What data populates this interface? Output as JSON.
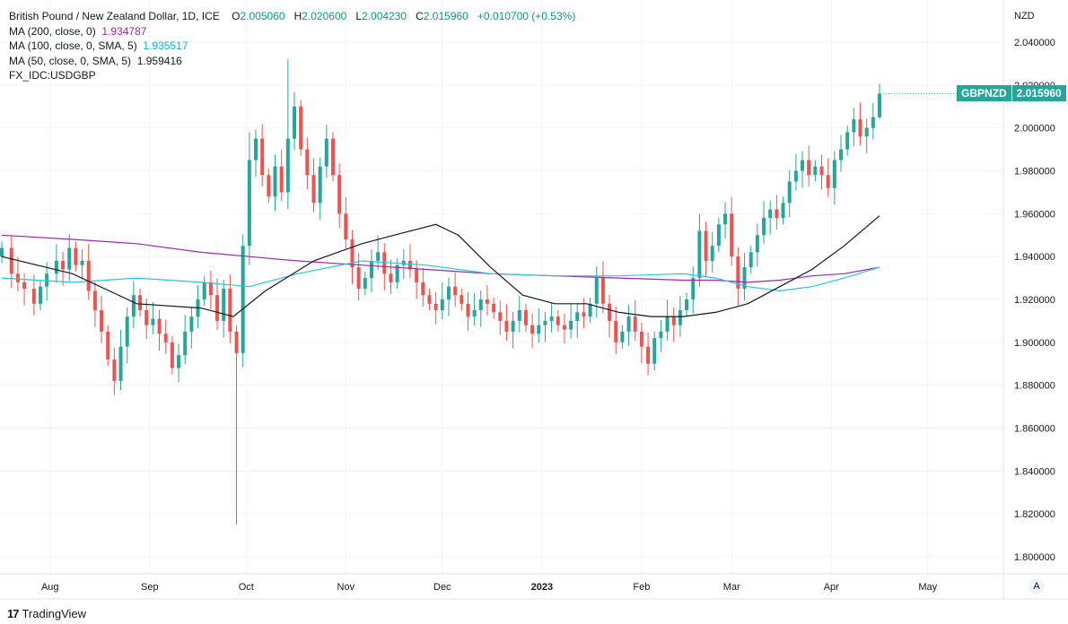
{
  "legend": {
    "title": "British Pound / New Zealand Dollar, 1D, ICE",
    "o_label": "O",
    "o": "2.005060",
    "h_label": "H",
    "h": "2.020600",
    "l_label": "L",
    "l": "2.004230",
    "c_label": "C",
    "c": "2.015960",
    "change": "+0.010700 (+0.53%)",
    "ma200_label": "MA (200, close, 0)",
    "ma200_value": "1.934787",
    "ma100_label": "MA (100, close, 0, SMA, 5)",
    "ma100_value": "1.935517",
    "ma50_label": "MA (50, close, 0, SMA, 5)",
    "ma50_value": "1.959416",
    "extra": "FX_IDC:USDGBP"
  },
  "price_tag": {
    "symbol": "GBPNZD",
    "value": "2.015960"
  },
  "axis_currency": "NZD",
  "auto_button": "A",
  "brand": "TradingView",
  "colors": {
    "up": "#26a69a",
    "down": "#ef5350",
    "ma200": "#9c27b0",
    "ma100": "#26c6da",
    "ma50": "#131722"
  },
  "chart_data": {
    "type": "candlestick",
    "y_ticks": [
      "1.800000",
      "1.820000",
      "1.840000",
      "1.860000",
      "1.880000",
      "1.900000",
      "1.920000",
      "1.940000",
      "1.960000",
      "1.980000",
      "2.000000",
      "2.020000",
      "2.040000"
    ],
    "ylim": [
      1.795,
      2.05
    ],
    "x_labels": [
      {
        "label": "Aug",
        "day": -7
      },
      {
        "label": "Sep",
        "day": 24
      },
      {
        "label": "Oct",
        "day": 54
      },
      {
        "label": "Nov",
        "day": 85
      },
      {
        "label": "Dec",
        "day": 115
      },
      {
        "label": "2023",
        "day": 146
      },
      {
        "label": "Feb",
        "day": 177
      },
      {
        "label": "Mar",
        "day": 205
      },
      {
        "label": "Apr",
        "day": 236
      },
      {
        "label": "May",
        "day": 266
      }
    ],
    "grid": true,
    "closes": [
      [
        -22,
        1.944
      ],
      [
        -19,
        1.932
      ],
      [
        -17,
        1.928
      ],
      [
        -15,
        1.925
      ],
      [
        -12,
        1.918
      ],
      [
        -10,
        1.926
      ],
      [
        -8,
        1.932
      ],
      [
        -5,
        1.938
      ],
      [
        -3,
        1.934
      ],
      [
        -1,
        1.944
      ],
      [
        1,
        1.936
      ],
      [
        3,
        1.938
      ],
      [
        5,
        1.924
      ],
      [
        7,
        1.915
      ],
      [
        9,
        1.905
      ],
      [
        11,
        1.892
      ],
      [
        13,
        1.882
      ],
      [
        15,
        1.898
      ],
      [
        17,
        1.912
      ],
      [
        19,
        1.922
      ],
      [
        21,
        1.915
      ],
      [
        23,
        1.908
      ],
      [
        25,
        1.911
      ],
      [
        27,
        1.904
      ],
      [
        29,
        1.9
      ],
      [
        31,
        1.888
      ],
      [
        33,
        1.894
      ],
      [
        35,
        1.905
      ],
      [
        37,
        1.912
      ],
      [
        39,
        1.92
      ],
      [
        41,
        1.928
      ],
      [
        43,
        1.922
      ],
      [
        45,
        1.91
      ],
      [
        47,
        1.925
      ],
      [
        49,
        1.905
      ],
      [
        51,
        1.895
      ],
      [
        53,
        1.945
      ],
      [
        55,
        1.985
      ],
      [
        57,
        1.995
      ],
      [
        59,
        1.978
      ],
      [
        61,
        1.968
      ],
      [
        63,
        1.982
      ],
      [
        65,
        1.97
      ],
      [
        67,
        1.995
      ],
      [
        69,
        2.01
      ],
      [
        71,
        1.99
      ],
      [
        73,
        1.978
      ],
      [
        75,
        1.965
      ],
      [
        77,
        1.982
      ],
      [
        79,
        1.995
      ],
      [
        81,
        1.978
      ],
      [
        83,
        1.96
      ],
      [
        85,
        1.948
      ],
      [
        87,
        1.935
      ],
      [
        89,
        1.925
      ],
      [
        91,
        1.93
      ],
      [
        93,
        1.938
      ],
      [
        95,
        1.942
      ],
      [
        97,
        1.932
      ],
      [
        99,
        1.928
      ],
      [
        101,
        1.936
      ],
      [
        103,
        1.938
      ],
      [
        105,
        1.934
      ],
      [
        107,
        1.928
      ],
      [
        109,
        1.922
      ],
      [
        111,
        1.918
      ],
      [
        113,
        1.915
      ],
      [
        115,
        1.92
      ],
      [
        117,
        1.926
      ],
      [
        119,
        1.922
      ],
      [
        121,
        1.918
      ],
      [
        123,
        1.912
      ],
      [
        125,
        1.915
      ],
      [
        127,
        1.92
      ],
      [
        129,
        1.918
      ],
      [
        131,
        1.914
      ],
      [
        133,
        1.91
      ],
      [
        135,
        1.905
      ],
      [
        137,
        1.91
      ],
      [
        139,
        1.915
      ],
      [
        141,
        1.908
      ],
      [
        143,
        1.904
      ],
      [
        145,
        1.908
      ],
      [
        147,
        1.91
      ],
      [
        149,
        1.912
      ],
      [
        151,
        1.908
      ],
      [
        153,
        1.906
      ],
      [
        155,
        1.91
      ],
      [
        157,
        1.914
      ],
      [
        159,
        1.912
      ],
      [
        161,
        1.918
      ],
      [
        163,
        1.93
      ],
      [
        165,
        1.918
      ],
      [
        167,
        1.91
      ],
      [
        169,
        1.9
      ],
      [
        171,
        1.905
      ],
      [
        173,
        1.912
      ],
      [
        175,
        1.905
      ],
      [
        177,
        1.898
      ],
      [
        179,
        1.89
      ],
      [
        181,
        1.902
      ],
      [
        183,
        1.905
      ],
      [
        185,
        1.912
      ],
      [
        187,
        1.908
      ],
      [
        189,
        1.915
      ],
      [
        191,
        1.92
      ],
      [
        193,
        1.93
      ],
      [
        195,
        1.952
      ],
      [
        197,
        1.938
      ],
      [
        199,
        1.945
      ],
      [
        201,
        1.955
      ],
      [
        203,
        1.96
      ],
      [
        205,
        1.94
      ],
      [
        207,
        1.925
      ],
      [
        209,
        1.935
      ],
      [
        211,
        1.942
      ],
      [
        213,
        1.95
      ],
      [
        215,
        1.958
      ],
      [
        217,
        1.962
      ],
      [
        219,
        1.958
      ],
      [
        221,
        1.965
      ],
      [
        223,
        1.975
      ],
      [
        225,
        1.98
      ],
      [
        227,
        1.985
      ],
      [
        229,
        1.978
      ],
      [
        231,
        1.982
      ],
      [
        233,
        1.978
      ],
      [
        235,
        1.972
      ],
      [
        237,
        1.985
      ],
      [
        239,
        1.99
      ],
      [
        241,
        1.998
      ],
      [
        243,
        2.004
      ],
      [
        245,
        1.996
      ],
      [
        247,
        2.0
      ],
      [
        249,
        2.005
      ],
      [
        251,
        2.016
      ]
    ],
    "ma50": [
      [
        -22,
        1.94
      ],
      [
        0,
        1.932
      ],
      [
        20,
        1.918
      ],
      [
        40,
        1.916
      ],
      [
        50,
        1.912
      ],
      [
        60,
        1.924
      ],
      [
        75,
        1.938
      ],
      [
        90,
        1.946
      ],
      [
        100,
        1.95
      ],
      [
        113,
        1.955
      ],
      [
        120,
        1.95
      ],
      [
        130,
        1.935
      ],
      [
        140,
        1.922
      ],
      [
        150,
        1.918
      ],
      [
        160,
        1.918
      ],
      [
        170,
        1.914
      ],
      [
        180,
        1.912
      ],
      [
        190,
        1.912
      ],
      [
        200,
        1.914
      ],
      [
        210,
        1.918
      ],
      [
        220,
        1.926
      ],
      [
        230,
        1.934
      ],
      [
        240,
        1.945
      ],
      [
        251,
        1.959
      ]
    ],
    "ma100": [
      [
        -22,
        1.93
      ],
      [
        0,
        1.928
      ],
      [
        20,
        1.93
      ],
      [
        40,
        1.928
      ],
      [
        55,
        1.926
      ],
      [
        70,
        1.932
      ],
      [
        90,
        1.938
      ],
      [
        110,
        1.936
      ],
      [
        130,
        1.932
      ],
      [
        150,
        1.931
      ],
      [
        170,
        1.931
      ],
      [
        190,
        1.932
      ],
      [
        200,
        1.93
      ],
      [
        210,
        1.926
      ],
      [
        220,
        1.924
      ],
      [
        230,
        1.926
      ],
      [
        240,
        1.93
      ],
      [
        251,
        1.935
      ]
    ],
    "ma200": [
      [
        -22,
        1.95
      ],
      [
        0,
        1.948
      ],
      [
        20,
        1.946
      ],
      [
        40,
        1.942
      ],
      [
        55,
        1.94
      ],
      [
        70,
        1.938
      ],
      [
        90,
        1.936
      ],
      [
        110,
        1.934
      ],
      [
        130,
        1.932
      ],
      [
        150,
        1.931
      ],
      [
        170,
        1.93
      ],
      [
        190,
        1.929
      ],
      [
        200,
        1.929
      ],
      [
        210,
        1.928
      ],
      [
        220,
        1.929
      ],
      [
        230,
        1.931
      ],
      [
        240,
        1.932
      ],
      [
        251,
        1.935
      ]
    ]
  }
}
